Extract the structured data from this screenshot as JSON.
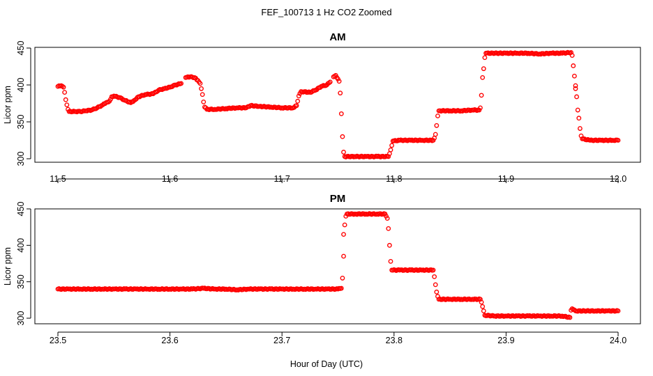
{
  "figure_title": "FEF_100713  1 Hz CO2 Zoomed",
  "xlabel": "Hour of Day (UTC)",
  "marker_color": "#ff0000",
  "chart_data": [
    {
      "type": "scatter",
      "title": "AM",
      "xlabel": "",
      "ylabel": "Licor ppm",
      "xlim": [
        11.5,
        12.0
      ],
      "ylim": [
        300,
        450
      ],
      "xticks": [
        11.5,
        11.6,
        11.7,
        11.8,
        11.9,
        12.0
      ],
      "xtick_labels": [
        "11.5",
        "11.6",
        "11.7",
        "11.8",
        "11.9",
        "12.0"
      ],
      "yticks": [
        300,
        350,
        400,
        450
      ],
      "ytick_labels": [
        "300",
        "350",
        "400",
        "450"
      ],
      "grid": false,
      "series": [
        {
          "color": "#ff0000",
          "marker": "open-circle",
          "points": [
            [
              11.5,
              398
            ],
            [
              11.503,
              399
            ],
            [
              11.505,
              397
            ],
            [
              11.506,
              390
            ],
            [
              11.507,
              380
            ],
            [
              11.508,
              373
            ],
            [
              11.509,
              367
            ],
            [
              11.51,
              364
            ],
            [
              11.515,
              364
            ],
            [
              11.52,
              364
            ],
            [
              11.525,
              365
            ],
            [
              11.53,
              366
            ],
            [
              11.535,
              369
            ],
            [
              11.54,
              373
            ],
            [
              11.543,
              376
            ],
            [
              11.546,
              378
            ],
            [
              11.548,
              384
            ],
            [
              11.55,
              385
            ],
            [
              11.555,
              383
            ],
            [
              11.56,
              379
            ],
            [
              11.565,
              376
            ],
            [
              11.568,
              379
            ],
            [
              11.572,
              384
            ],
            [
              11.578,
              387
            ],
            [
              11.585,
              388
            ],
            [
              11.59,
              393
            ],
            [
              11.595,
              395
            ],
            [
              11.6,
              397
            ],
            [
              11.605,
              400
            ],
            [
              11.61,
              402
            ],
            [
              11.614,
              410
            ],
            [
              11.618,
              411
            ],
            [
              11.622,
              410
            ],
            [
              11.625,
              406
            ],
            [
              11.627,
              402
            ],
            [
              11.628,
              395
            ],
            [
              11.629,
              387
            ],
            [
              11.63,
              377
            ],
            [
              11.631,
              370
            ],
            [
              11.633,
              367
            ],
            [
              11.64,
              367
            ],
            [
              11.65,
              368
            ],
            [
              11.66,
              369
            ],
            [
              11.668,
              369
            ],
            [
              11.672,
              372
            ],
            [
              11.68,
              371
            ],
            [
              11.69,
              370
            ],
            [
              11.7,
              369
            ],
            [
              11.71,
              369
            ],
            [
              11.713,
              372
            ],
            [
              11.714,
              378
            ],
            [
              11.715,
              385
            ],
            [
              11.717,
              391
            ],
            [
              11.725,
              390
            ],
            [
              11.73,
              393
            ],
            [
              11.735,
              398
            ],
            [
              11.74,
              400
            ],
            [
              11.743,
              404
            ],
            [
              11.746,
              411
            ],
            [
              11.748,
              413
            ],
            [
              11.75,
              408
            ],
            [
              11.751,
              405
            ],
            [
              11.752,
              389
            ],
            [
              11.753,
              361
            ],
            [
              11.754,
              330
            ],
            [
              11.755,
              309
            ],
            [
              11.756,
              303
            ],
            [
              11.765,
              303
            ],
            [
              11.775,
              303
            ],
            [
              11.785,
              303
            ],
            [
              11.795,
              303
            ],
            [
              11.796,
              307
            ],
            [
              11.797,
              312
            ],
            [
              11.798,
              318
            ],
            [
              11.799,
              324
            ],
            [
              11.805,
              325
            ],
            [
              11.815,
              325
            ],
            [
              11.825,
              325
            ],
            [
              11.835,
              325
            ],
            [
              11.836,
              328
            ],
            [
              11.837,
              333
            ],
            [
              11.838,
              345
            ],
            [
              11.839,
              358
            ],
            [
              11.84,
              365
            ],
            [
              11.85,
              365
            ],
            [
              11.86,
              365
            ],
            [
              11.87,
              366
            ],
            [
              11.876,
              366
            ],
            [
              11.877,
              369
            ],
            [
              11.878,
              386
            ],
            [
              11.879,
              410
            ],
            [
              11.88,
              422
            ],
            [
              11.881,
              437
            ],
            [
              11.882,
              443
            ],
            [
              11.89,
              443
            ],
            [
              11.9,
              443
            ],
            [
              11.91,
              443
            ],
            [
              11.92,
              443
            ],
            [
              11.93,
              442
            ],
            [
              11.94,
              443
            ],
            [
              11.95,
              443
            ],
            [
              11.958,
              444
            ],
            [
              11.959,
              440
            ],
            [
              11.96,
              426
            ],
            [
              11.961,
              412
            ],
            [
              11.962,
              399
            ],
            [
              11.962,
              395
            ],
            [
              11.963,
              384
            ],
            [
              11.964,
              366
            ],
            [
              11.965,
              355
            ],
            [
              11.966,
              341
            ],
            [
              11.967,
              331
            ],
            [
              11.968,
              327
            ],
            [
              11.975,
              325
            ],
            [
              11.985,
              325
            ],
            [
              11.995,
              325
            ],
            [
              12.0,
              325
            ]
          ]
        }
      ]
    },
    {
      "type": "scatter",
      "title": "PM",
      "xlabel": "",
      "ylabel": "Licor ppm",
      "xlim": [
        23.5,
        24.0
      ],
      "ylim": [
        300,
        450
      ],
      "xticks": [
        23.5,
        23.6,
        23.7,
        23.8,
        23.9,
        24.0
      ],
      "xtick_labels": [
        "23.5",
        "23.6",
        "23.7",
        "23.8",
        "23.9",
        "24.0"
      ],
      "yticks": [
        300,
        350,
        400,
        450
      ],
      "ytick_labels": [
        "300",
        "350",
        "400",
        "450"
      ],
      "grid": false,
      "series": [
        {
          "color": "#ff0000",
          "marker": "open-circle",
          "points": [
            [
              23.5,
              340
            ],
            [
              23.51,
              340
            ],
            [
              23.52,
              340
            ],
            [
              23.53,
              340
            ],
            [
              23.54,
              340
            ],
            [
              23.55,
              340
            ],
            [
              23.56,
              340
            ],
            [
              23.57,
              340
            ],
            [
              23.58,
              340
            ],
            [
              23.59,
              340
            ],
            [
              23.6,
              340
            ],
            [
              23.61,
              340
            ],
            [
              23.62,
              340
            ],
            [
              23.63,
              341
            ],
            [
              23.64,
              340
            ],
            [
              23.65,
              340
            ],
            [
              23.66,
              339
            ],
            [
              23.67,
              340
            ],
            [
              23.68,
              340
            ],
            [
              23.69,
              340
            ],
            [
              23.7,
              340
            ],
            [
              23.71,
              340
            ],
            [
              23.72,
              340
            ],
            [
              23.73,
              340
            ],
            [
              23.74,
              340
            ],
            [
              23.75,
              340
            ],
            [
              23.753,
              341
            ],
            [
              23.754,
              355
            ],
            [
              23.755,
              385
            ],
            [
              23.755,
              415
            ],
            [
              23.756,
              428
            ],
            [
              23.757,
              440
            ],
            [
              23.758,
              443
            ],
            [
              23.765,
              443
            ],
            [
              23.775,
              443
            ],
            [
              23.785,
              443
            ],
            [
              23.792,
              443
            ],
            [
              23.793,
              440
            ],
            [
              23.794,
              437
            ],
            [
              23.795,
              423
            ],
            [
              23.796,
              400
            ],
            [
              23.797,
              378
            ],
            [
              23.798,
              366
            ],
            [
              23.805,
              366
            ],
            [
              23.815,
              366
            ],
            [
              23.825,
              366
            ],
            [
              23.835,
              366
            ],
            [
              23.836,
              357
            ],
            [
              23.837,
              346
            ],
            [
              23.838,
              336
            ],
            [
              23.839,
              330
            ],
            [
              23.84,
              326
            ],
            [
              23.85,
              326
            ],
            [
              23.86,
              326
            ],
            [
              23.87,
              326
            ],
            [
              23.877,
              326
            ],
            [
              23.878,
              322
            ],
            [
              23.879,
              316
            ],
            [
              23.88,
              310
            ],
            [
              23.881,
              304
            ],
            [
              23.89,
              303
            ],
            [
              23.9,
              303
            ],
            [
              23.91,
              303
            ],
            [
              23.92,
              303
            ],
            [
              23.93,
              303
            ],
            [
              23.94,
              303
            ],
            [
              23.95,
              303
            ],
            [
              23.957,
              301
            ],
            [
              23.958,
              311
            ],
            [
              23.959,
              313
            ],
            [
              23.96,
              312
            ],
            [
              23.962,
              310
            ],
            [
              23.97,
              310
            ],
            [
              23.98,
              310
            ],
            [
              23.99,
              310
            ],
            [
              24.0,
              310
            ]
          ]
        }
      ]
    }
  ]
}
